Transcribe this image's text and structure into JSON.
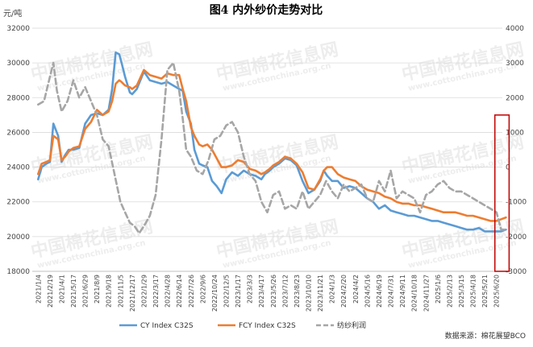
{
  "title": "图4  内外纱价走势对比",
  "y_left_unit": "元/吨",
  "source": "数据来源：棉花展望BCO",
  "watermark": {
    "text_cn": "中国棉花信息网",
    "text_en": "www.cottonchina.org.cn"
  },
  "colors": {
    "cy": "#5b9bd5",
    "fcy": "#ed7d31",
    "profit": "#a6a6a6",
    "highlight_box": "#c00000"
  },
  "chart_data": {
    "type": "line",
    "title": "图4  内外纱价走势对比",
    "ylabel": "元/吨",
    "y_left": {
      "min": 18000,
      "max": 32000,
      "ticks": [
        18000,
        20000,
        22000,
        24000,
        26000,
        28000,
        30000,
        32000
      ]
    },
    "y_right": {
      "min": -3000,
      "max": 4000,
      "ticks": [
        -3000,
        -2000,
        -1000,
        0,
        1000,
        2000,
        3000,
        4000
      ]
    },
    "x_ticks": [
      "2021/1/4",
      "2021/2/19",
      "2021/4/1",
      "2021/5/17",
      "2021/6/29",
      "2021/8/9",
      "2021/9/18",
      "2021/11/5",
      "2021/12/17",
      "2022/1/29",
      "2022/3/17",
      "2022/4/28",
      "2022/6/14",
      "2022/7/26",
      "2022/9/6",
      "2022/10/24",
      "2022/12/5",
      "2023/1/17",
      "2023/3/3",
      "2023/4/17",
      "2023/5/26",
      "2023/7/12",
      "2023/8/23",
      "2023/10/10",
      "2023/11/21",
      "2024/1/3",
      "2024/2/20",
      "2024/4/2",
      "2024/5/16",
      "2024/6/19",
      "2024/7/31",
      "2024/9/11",
      "2024/10/18",
      "2024/11/27",
      "2025/1/6",
      "2025/2/13",
      "2025/3/15",
      "2025/4/18",
      "2025/5/21",
      "2025/6/20"
    ],
    "grid": "horizontal",
    "legend_position": "bottom",
    "highlight": {
      "from_index": 39,
      "to_index": 39.8,
      "y_right": [
        -3000,
        1500
      ]
    },
    "series": [
      {
        "name": "CY Index C32S",
        "axis": "left",
        "color": "#5b9bd5",
        "x": [
          0,
          0.3,
          0.7,
          1,
          1.3,
          1.7,
          2,
          2.3,
          2.6,
          3,
          3.5,
          4,
          4.5,
          5,
          5.5,
          6,
          6.3,
          6.6,
          6.9,
          7.1,
          7.4,
          7.8,
          8,
          8.4,
          9,
          9.5,
          10,
          10.5,
          11,
          11.5,
          12,
          12.3,
          12.6,
          13,
          13.3,
          13.7,
          14,
          14.4,
          14.8,
          15.2,
          15.6,
          16,
          16.5,
          17,
          17.5,
          18,
          18.5,
          19,
          19.3,
          19.7,
          20,
          20.5,
          21,
          21.5,
          22,
          22.5,
          23,
          23.5,
          24,
          24.3,
          24.6,
          25,
          25.5,
          26,
          26.5,
          27,
          27.5,
          28,
          28.5,
          29,
          29.5,
          30,
          30.5,
          31,
          31.5,
          32,
          32.5,
          33,
          33.5,
          34,
          34.5,
          35,
          35.5,
          36,
          36.5,
          37,
          37.5,
          38,
          38.5,
          39,
          39.4,
          39.8
        ],
        "values": [
          23300,
          24000,
          24200,
          24300,
          26500,
          25800,
          24300,
          24700,
          25000,
          25000,
          25100,
          26500,
          27000,
          27100,
          27000,
          27300,
          28500,
          30600,
          30500,
          30000,
          29200,
          28300,
          28200,
          28500,
          29500,
          29000,
          28900,
          28800,
          28900,
          28700,
          28500,
          28400,
          27200,
          26500,
          25000,
          24200,
          24100,
          24000,
          23200,
          22900,
          22500,
          23300,
          23700,
          23500,
          23800,
          23600,
          23500,
          23300,
          23600,
          23800,
          24000,
          24200,
          24500,
          24400,
          24100,
          23200,
          22500,
          22700,
          23200,
          23800,
          23500,
          23200,
          23200,
          22800,
          22900,
          22800,
          22500,
          22200,
          22000,
          21600,
          21800,
          21500,
          21400,
          21300,
          21200,
          21200,
          21100,
          21000,
          20900,
          20900,
          20800,
          20700,
          20600,
          20500,
          20400,
          20400,
          20500,
          20300,
          20300,
          20300,
          20300,
          20400
        ]
      },
      {
        "name": "FCY Index C32S",
        "axis": "left",
        "color": "#ed7d31",
        "x": [
          0,
          0.3,
          0.7,
          1,
          1.3,
          1.7,
          2,
          2.3,
          2.6,
          3,
          3.5,
          4,
          4.5,
          5,
          5.5,
          6,
          6.3,
          6.6,
          6.9,
          7.1,
          7.4,
          7.8,
          8,
          8.4,
          9,
          9.5,
          10,
          10.5,
          11,
          11.5,
          12,
          12.3,
          12.6,
          13,
          13.3,
          13.7,
          14,
          14.4,
          14.8,
          15.2,
          15.6,
          16,
          16.5,
          17,
          17.5,
          18,
          18.5,
          19,
          19.3,
          19.7,
          20,
          20.5,
          21,
          21.5,
          22,
          22.5,
          23,
          23.5,
          24,
          24.3,
          24.6,
          25,
          25.5,
          26,
          26.5,
          27,
          27.5,
          28,
          28.5,
          29,
          29.5,
          30,
          30.5,
          31,
          31.5,
          32,
          32.5,
          33,
          33.5,
          34,
          34.5,
          35,
          35.5,
          36,
          36.5,
          37,
          37.5,
          38,
          38.5,
          39,
          39.4,
          39.8
        ],
        "values": [
          23600,
          24200,
          24300,
          24400,
          25800,
          25600,
          24400,
          24600,
          24900,
          25100,
          25200,
          26200,
          26600,
          27300,
          27000,
          27200,
          27800,
          28800,
          29000,
          28900,
          28700,
          28600,
          28500,
          28700,
          29600,
          29300,
          29200,
          29100,
          29400,
          29300,
          29300,
          28500,
          27800,
          26300,
          25800,
          25300,
          25200,
          25300,
          25000,
          24500,
          24000,
          24000,
          24100,
          24400,
          24300,
          23900,
          23800,
          23600,
          23700,
          23900,
          24100,
          24300,
          24600,
          24500,
          24200,
          23700,
          22800,
          22700,
          23300,
          23800,
          24000,
          24000,
          23600,
          23400,
          23300,
          23200,
          22900,
          22700,
          22600,
          22500,
          22300,
          22200,
          22000,
          21900,
          21900,
          21800,
          21800,
          21700,
          21600,
          21500,
          21400,
          21400,
          21400,
          21300,
          21200,
          21200,
          21100,
          21000,
          20900,
          20900,
          21000,
          21100
        ]
      },
      {
        "name": "纺纱利润",
        "axis": "right",
        "color": "#a6a6a6",
        "x": [
          0,
          0.5,
          1,
          1.3,
          1.6,
          2,
          2.5,
          3,
          3.5,
          4,
          4.5,
          5,
          5.5,
          6,
          6.5,
          7,
          7.4,
          7.8,
          8.2,
          8.6,
          9,
          9.5,
          10,
          10.5,
          11,
          11.5,
          12,
          12.3,
          12.6,
          13,
          13.5,
          14,
          14.5,
          15,
          15.5,
          16,
          16.5,
          17,
          17.5,
          18,
          18.5,
          19,
          19.5,
          20,
          20.5,
          21,
          21.5,
          22,
          22.5,
          23,
          23.5,
          24,
          24.5,
          25,
          25.5,
          26,
          26.5,
          27,
          27.5,
          28,
          28.5,
          29,
          29.5,
          30,
          30.5,
          31,
          31.5,
          32,
          32.5,
          33,
          33.5,
          34,
          34.5,
          35,
          35.5,
          36,
          36.5,
          37,
          37.5,
          38,
          38.5,
          39,
          39.4,
          39.8
        ],
        "values": [
          1800,
          1900,
          2600,
          3000,
          2200,
          1600,
          1900,
          2500,
          2000,
          2300,
          1900,
          1500,
          800,
          600,
          -200,
          -1000,
          -1300,
          -1600,
          -1700,
          -1900,
          -1700,
          -1400,
          -800,
          800,
          2800,
          3000,
          2200,
          1400,
          500,
          300,
          -100,
          -200,
          200,
          800,
          900,
          1200,
          1300,
          1000,
          300,
          -200,
          -400,
          -1000,
          -1300,
          -800,
          -700,
          -1200,
          -1100,
          -1200,
          -700,
          -1200,
          -1000,
          -800,
          -400,
          -700,
          -900,
          -500,
          -700,
          -600,
          -500,
          -900,
          -1000,
          -400,
          -700,
          -100,
          -900,
          -700,
          -800,
          -900,
          -1300,
          -800,
          -700,
          -500,
          -400,
          -600,
          -700,
          -700,
          -800,
          -900,
          -1000,
          -1100,
          -1200,
          -1300,
          -1800,
          -1800
        ]
      }
    ]
  }
}
